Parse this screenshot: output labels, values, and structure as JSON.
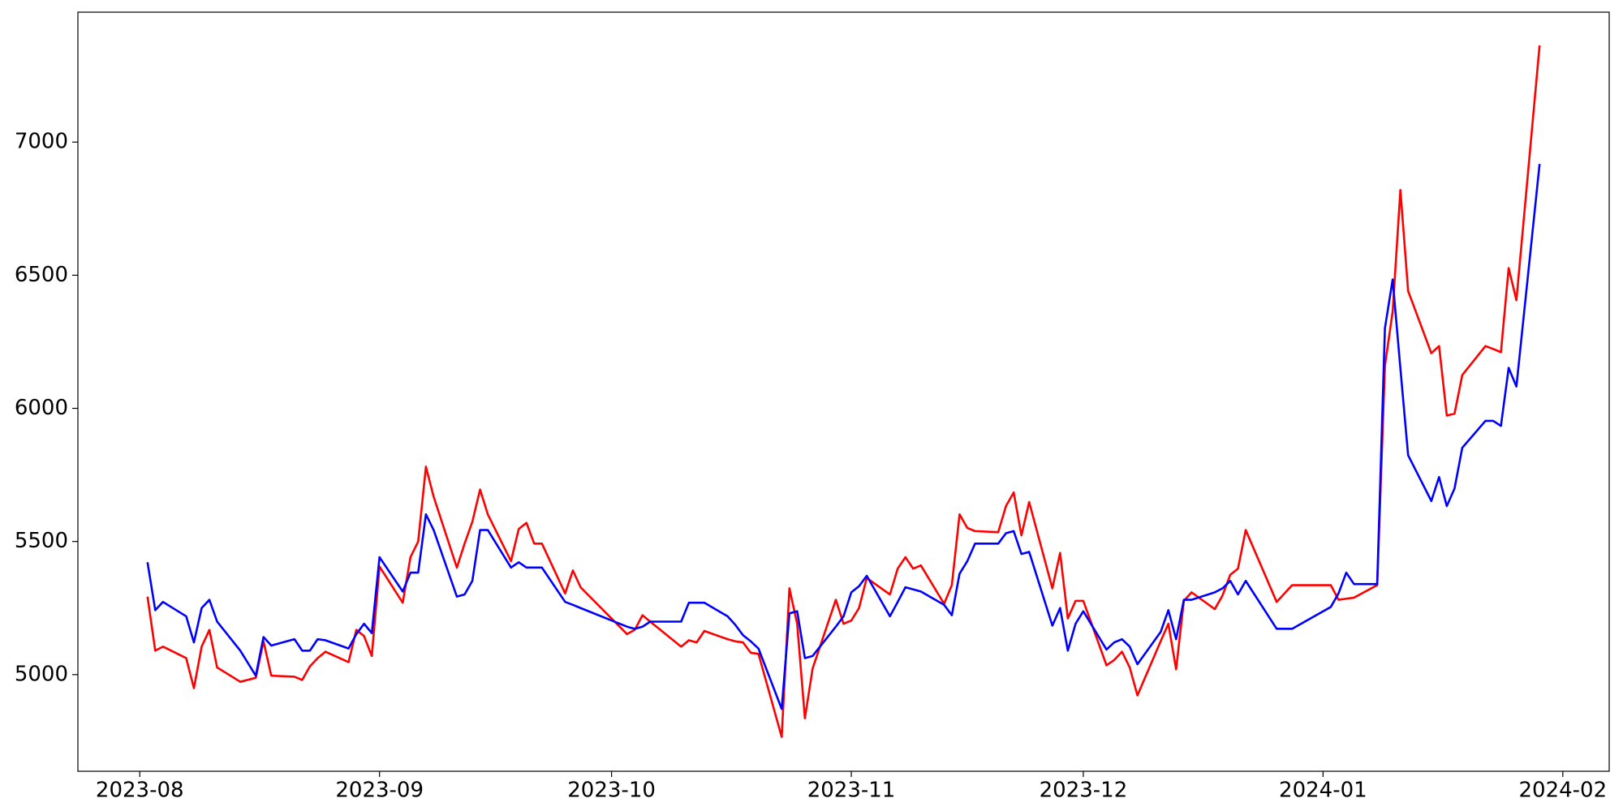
{
  "chart_data": {
    "type": "line",
    "x": [
      19571,
      19572,
      19573,
      19576,
      19577,
      19578,
      19579,
      19580,
      19583,
      19585,
      19586,
      19587,
      19590,
      19591,
      19592,
      19593,
      19594,
      19597,
      19598,
      19599,
      19600,
      19601,
      19604,
      19605,
      19606,
      19607,
      19608,
      19611,
      19612,
      19613,
      19614,
      19615,
      19618,
      19619,
      19620,
      19621,
      19622,
      19625,
      19626,
      19627,
      19633,
      19634,
      19635,
      19636,
      19640,
      19641,
      19642,
      19643,
      19646,
      19647,
      19648,
      19649,
      19650,
      19653,
      19654,
      19655,
      19656,
      19657,
      19660,
      19661,
      19662,
      19663,
      19664,
      19667,
      19668,
      19669,
      19670,
      19671,
      19674,
      19675,
      19676,
      19677,
      19678,
      19681,
      19682,
      19683,
      19684,
      19685,
      19688,
      19689,
      19690,
      19691,
      19692,
      19695,
      19696,
      19697,
      19698,
      19699,
      19702,
      19703,
      19704,
      19705,
      19706,
      19709,
      19710,
      19711,
      19712,
      19713,
      19717,
      19719,
      19724,
      19725,
      19726,
      19727,
      19730,
      19731,
      19732,
      19733,
      19734,
      19737,
      19738,
      19739,
      19740,
      19741,
      19744,
      19745,
      19746,
      19747,
      19748,
      19751
    ],
    "series": [
      {
        "color": "#ff0000",
        "values": [
          5293,
          5090,
          5105,
          5062,
          4949,
          5105,
          5168,
          5027,
          4973,
          4988,
          5125,
          4996,
          4992,
          4980,
          5031,
          5062,
          5086,
          5047,
          5168,
          5145,
          5070,
          5406,
          5270,
          5441,
          5500,
          5781,
          5668,
          5402,
          5492,
          5574,
          5695,
          5602,
          5426,
          5547,
          5570,
          5492,
          5492,
          5305,
          5391,
          5328,
          5152,
          5168,
          5223,
          5199,
          5105,
          5129,
          5121,
          5164,
          5133,
          5125,
          5121,
          5082,
          5078,
          4766,
          5324,
          5191,
          4836,
          5023,
          5281,
          5191,
          5203,
          5250,
          5363,
          5301,
          5398,
          5441,
          5398,
          5410,
          5266,
          5336,
          5602,
          5551,
          5539,
          5535,
          5633,
          5684,
          5523,
          5648,
          5324,
          5457,
          5211,
          5277,
          5277,
          5035,
          5055,
          5086,
          5027,
          4922,
          5125,
          5191,
          5020,
          5277,
          5309,
          5246,
          5297,
          5375,
          5398,
          5543,
          5273,
          5336,
          5336,
          5281,
          5285,
          5289,
          5336,
          6160,
          6363,
          6820,
          6441,
          6207,
          6234,
          5973,
          5980,
          6125,
          6234,
          6223,
          6211,
          6527,
          6406,
          7363
        ]
      },
      {
        "color": "#0000ff",
        "values": [
          5422,
          5242,
          5273,
          5219,
          5121,
          5250,
          5281,
          5199,
          5090,
          4996,
          5141,
          5109,
          5133,
          5090,
          5090,
          5133,
          5129,
          5098,
          5152,
          5191,
          5156,
          5441,
          5312,
          5383,
          5383,
          5602,
          5543,
          5293,
          5301,
          5352,
          5543,
          5543,
          5402,
          5422,
          5402,
          5402,
          5402,
          5273,
          5262,
          5250,
          5180,
          5172,
          5180,
          5199,
          5199,
          5270,
          5270,
          5270,
          5219,
          5187,
          5148,
          5125,
          5098,
          4871,
          5230,
          5238,
          5062,
          5070,
          5180,
          5219,
          5309,
          5332,
          5371,
          5219,
          5273,
          5328,
          5320,
          5312,
          5262,
          5223,
          5379,
          5426,
          5492,
          5492,
          5531,
          5539,
          5453,
          5461,
          5184,
          5250,
          5090,
          5191,
          5238,
          5094,
          5121,
          5133,
          5105,
          5039,
          5160,
          5242,
          5133,
          5281,
          5281,
          5309,
          5324,
          5352,
          5301,
          5352,
          5172,
          5172,
          5254,
          5305,
          5383,
          5340,
          5340,
          6301,
          6484,
          6150,
          5824,
          5652,
          5742,
          5633,
          5699,
          5852,
          5953,
          5953,
          5934,
          6152,
          6082,
          6918
        ]
      }
    ],
    "xlim": [
      19562,
      19760
    ],
    "xticks": [
      {
        "value": 19570,
        "label": "2023-08"
      },
      {
        "value": 19601,
        "label": "2023-09"
      },
      {
        "value": 19631,
        "label": "2023-10"
      },
      {
        "value": 19662,
        "label": "2023-11"
      },
      {
        "value": 19692,
        "label": "2023-12"
      },
      {
        "value": 19723,
        "label": "2024-01"
      },
      {
        "value": 19754,
        "label": "2024-02"
      }
    ],
    "ylim": [
      4637,
      7488
    ],
    "yticks": [
      5000,
      5500,
      6000,
      6500,
      7000
    ],
    "grid": false
  }
}
